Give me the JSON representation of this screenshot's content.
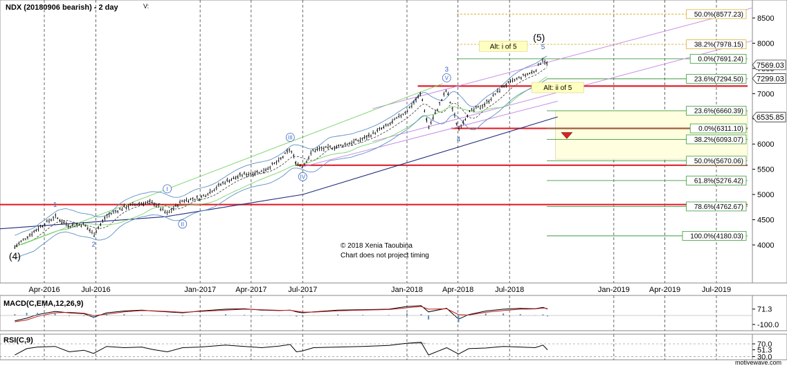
{
  "header": {
    "title": "NDX (20180906 bearish) - 2 day",
    "v_label": "V:"
  },
  "watermark": {
    "copyright": "© 2018 Xenia Taoubina",
    "disclaimer": "Chart does not project timing",
    "brand": "motivewave.com"
  },
  "colors": {
    "price": "#000000",
    "support": "#e0202a",
    "fib_line": "#3c9a3c",
    "fib_target": "#d9b032",
    "channel": "#c78de6",
    "trend": "#1f2a7a",
    "bollinger": "#5b8fc2",
    "ma_green": "#7ad36a",
    "macd": "#000000",
    "signal": "#c01818",
    "zone": "#ffffe0",
    "wave_label": "#3b66c4",
    "arrow": "#e02020"
  },
  "chart_data": [
    {
      "type": "line",
      "title": "NDX (20180906 bearish) - 2 day",
      "x_ticks": [
        "Apr-2016",
        "Jul-2016",
        "Jan-2017",
        "Apr-2017",
        "Jul-2017",
        "Jan-2018",
        "Apr-2018",
        "Jul-2018",
        "Jan-2019",
        "Apr-2019",
        "Jul-2019"
      ],
      "y_ticks": [
        4000,
        4500,
        5000,
        5500,
        6000,
        6500,
        7000,
        7500,
        8000,
        8500
      ],
      "ylim": [
        3700,
        8800
      ],
      "grid": "vertical dashed",
      "price_series": {
        "x": [
          "2016-02-09",
          "2016-03-01",
          "2016-03-20",
          "2016-04-20",
          "2016-05-15",
          "2016-06-10",
          "2016-06-27",
          "2016-07-20",
          "2016-08-20",
          "2016-09-20",
          "2016-10-10",
          "2016-11-04",
          "2016-12-01",
          "2017-01-01",
          "2017-02-15",
          "2017-03-20",
          "2017-04-20",
          "2017-05-20",
          "2017-06-09",
          "2017-06-20",
          "2017-07-01",
          "2017-07-20",
          "2017-09-01",
          "2017-10-15",
          "2017-11-30",
          "2018-01-01",
          "2018-01-26",
          "2018-02-08",
          "2018-03-12",
          "2018-04-02",
          "2018-04-20",
          "2018-05-20",
          "2018-06-20",
          "2018-07-20",
          "2018-08-15",
          "2018-08-29",
          "2018-09-06"
        ],
        "y": [
          3960,
          4150,
          4320,
          4560,
          4380,
          4410,
          4210,
          4570,
          4750,
          4830,
          4840,
          4620,
          4880,
          4930,
          5260,
          5400,
          5460,
          5660,
          5900,
          5620,
          5560,
          5880,
          5950,
          6100,
          6380,
          6660,
          7000,
          6320,
          7080,
          6300,
          6620,
          6800,
          7150,
          7320,
          7450,
          7690,
          7569
        ]
      },
      "current_price": "7569.03",
      "reference_price": "7299.03",
      "support_label": "6535.85",
      "support_levels": [
        7150,
        6311.1,
        5580,
        4800
      ],
      "fib_levels": [
        {
          "label": "50.0%(8577.23)",
          "value": 8577.23
        },
        {
          "label": "38.2%(7978.15)",
          "value": 7978.15
        },
        {
          "label": "0.0%(7691.24)",
          "value": 7691.24
        },
        {
          "label": "23.6%(7294.50)",
          "value": 7294.5
        },
        {
          "label": "23.6%(6660.39)",
          "value": 6660.39
        },
        {
          "label": "0.0%(6311.10)",
          "value": 6311.1
        },
        {
          "label": "38.2%(6093.07)",
          "value": 6093.07
        },
        {
          "label": "50.0%(5670.06)",
          "value": 5670.06
        },
        {
          "label": "61.8%(5276.42)",
          "value": 5276.42
        },
        {
          "label": "78.6%(4762.67)",
          "value": 4762.67
        },
        {
          "label": "100.0%(4180.03)",
          "value": 4180.03
        }
      ],
      "waves": [
        {
          "label": "(4)",
          "x": "2016-02-09",
          "y": 3960,
          "style": "big",
          "pos": "below"
        },
        {
          "label": "1",
          "x": "2016-04-20",
          "y": 4560,
          "style": "plain",
          "pos": "above"
        },
        {
          "label": "2",
          "x": "2016-06-27",
          "y": 4210,
          "style": "plain",
          "pos": "below"
        },
        {
          "label": "I",
          "x": "2016-11-04",
          "y": 4880,
          "style": "circle",
          "pos": "above"
        },
        {
          "label": "II",
          "x": "2016-12-01",
          "y": 4620,
          "style": "circle",
          "pos": "below"
        },
        {
          "label": "III",
          "x": "2017-06-09",
          "y": 5900,
          "style": "circle",
          "pos": "above"
        },
        {
          "label": "IV",
          "x": "2017-07-01",
          "y": 5560,
          "style": "circle",
          "pos": "below"
        },
        {
          "label": "3",
          "x": "2018-03-12",
          "y": 7080,
          "style": "plain",
          "pos": "above2"
        },
        {
          "label": "V",
          "x": "2018-03-12",
          "y": 7080,
          "style": "circle",
          "pos": "above"
        },
        {
          "label": "4",
          "x": "2018-04-02",
          "y": 6300,
          "style": "plain",
          "pos": "below"
        },
        {
          "label": "5",
          "x": "2018-08-29",
          "y": 7690,
          "style": "plain",
          "pos": "above"
        },
        {
          "label": "(5)",
          "x": "2018-08-22",
          "y": 7690,
          "style": "big",
          "pos": "above2"
        }
      ],
      "annotations": [
        {
          "text": "Alt: i of 5",
          "x": "2018-06-20",
          "y": 7920
        },
        {
          "text": "Alt: ii of 5",
          "x": "2018-09-24",
          "y": 7100
        }
      ]
    },
    {
      "type": "line",
      "title": "MACD(C,EMA,12,26,9)",
      "y_ticks": [
        71.3,
        -100.0
      ],
      "y_tick_labels": [
        "71.3",
        "-100.0"
      ],
      "series": [
        {
          "name": "MACD",
          "values": [
            -60,
            -30,
            10,
            45,
            30,
            20,
            -20,
            30,
            50,
            60,
            50,
            40,
            30,
            50,
            70,
            75,
            60,
            55,
            60,
            40,
            30,
            40,
            60,
            65,
            70,
            100,
            110,
            40,
            80,
            -40,
            10,
            50,
            70,
            80,
            75,
            90,
            71.3
          ]
        },
        {
          "name": "Signal",
          "values": [
            -70,
            -50,
            -10,
            30,
            35,
            25,
            0,
            15,
            40,
            55,
            52,
            45,
            35,
            45,
            60,
            70,
            65,
            58,
            58,
            48,
            38,
            38,
            52,
            60,
            66,
            85,
            100,
            70,
            75,
            10,
            5,
            35,
            55,
            70,
            73,
            82,
            78
          ]
        }
      ]
    },
    {
      "type": "line",
      "title": "RSI(C,9)",
      "y_ticks": [
        70.0,
        51.3,
        30.0
      ],
      "y_tick_labels": [
        "70.0",
        "51.3",
        "30.0"
      ],
      "series": [
        {
          "name": "RSI",
          "values": [
            35,
            55,
            60,
            62,
            45,
            50,
            40,
            62,
            58,
            60,
            52,
            45,
            58,
            60,
            66,
            62,
            58,
            63,
            68,
            45,
            48,
            58,
            60,
            62,
            65,
            72,
            75,
            35,
            58,
            38,
            55,
            57,
            62,
            60,
            58,
            66,
            51.3
          ]
        }
      ]
    }
  ]
}
